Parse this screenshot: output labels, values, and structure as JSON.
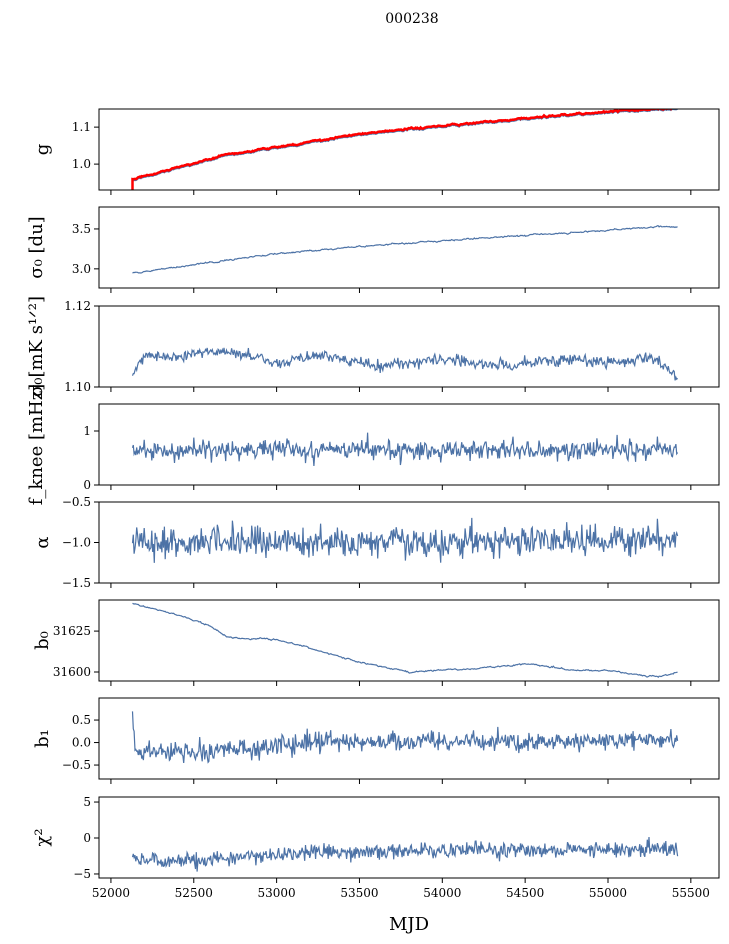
{
  "chart_data": {
    "type": "line",
    "title": "000238",
    "xlabel": "MJD",
    "xlim": [
      51928,
      55670
    ],
    "xticks": [
      52000,
      52500,
      53000,
      53500,
      54000,
      54500,
      55000,
      55500
    ],
    "x_range": [
      52130,
      55420
    ],
    "line_color": "#4c72a6",
    "overlay_color": "#ff0000",
    "panels": [
      {
        "ylabel": "g",
        "ylim": [
          0.93,
          1.149
        ],
        "yticks": [
          1.0,
          1.1
        ],
        "ytick_labels": [
          "1.0",
          "1.1"
        ],
        "noise": 0.001,
        "trend": [
          [
            52130,
            0.955
          ],
          [
            52300,
            0.975
          ],
          [
            52500,
            0.998
          ],
          [
            52700,
            1.022
          ],
          [
            53000,
            1.042
          ],
          [
            53500,
            1.078
          ],
          [
            54000,
            1.1
          ],
          [
            54500,
            1.12
          ],
          [
            55000,
            1.138
          ],
          [
            55420,
            1.148
          ]
        ],
        "overlay": {
          "label": "red overlay",
          "offset": 0.004,
          "start_spike": 0.93
        }
      },
      {
        "ylabel": "σ₀ [du]",
        "ylim": [
          2.76,
          3.775
        ],
        "yticks": [
          3.0,
          3.5
        ],
        "ytick_labels": [
          "3.0",
          "3.5"
        ],
        "noise": 0.004,
        "trend": [
          [
            52130,
            2.95
          ],
          [
            52500,
            3.05
          ],
          [
            53000,
            3.19
          ],
          [
            53500,
            3.28
          ],
          [
            54000,
            3.35
          ],
          [
            54500,
            3.42
          ],
          [
            55000,
            3.48
          ],
          [
            55300,
            3.53
          ],
          [
            55420,
            3.52
          ]
        ]
      },
      {
        "ylabel": "σ₀[mK s¹ᐟ²]",
        "ylim": [
          1.1,
          1.12
        ],
        "yticks": [
          1.1,
          1.12
        ],
        "ytick_labels": [
          "1.10",
          "1.12"
        ],
        "noise": 0.0007,
        "trend": [
          [
            52130,
            1.103
          ],
          [
            52200,
            1.108
          ],
          [
            52400,
            1.1075
          ],
          [
            52600,
            1.109
          ],
          [
            52800,
            1.108
          ],
          [
            53000,
            1.106
          ],
          [
            53300,
            1.108
          ],
          [
            53600,
            1.105
          ],
          [
            54000,
            1.107
          ],
          [
            54400,
            1.105
          ],
          [
            54700,
            1.107
          ],
          [
            55000,
            1.106
          ],
          [
            55300,
            1.107
          ],
          [
            55420,
            1.102
          ]
        ]
      },
      {
        "ylabel": "f_knee [mHz]",
        "ylim": [
          0,
          1.5
        ],
        "yticks": [
          0,
          1
        ],
        "ytick_labels": [
          "0",
          "1"
        ],
        "noise": 0.09,
        "trend": [
          [
            52130,
            0.65
          ],
          [
            55420,
            0.65
          ]
        ]
      },
      {
        "ylabel": "α",
        "ylim": [
          -1.5,
          -0.5
        ],
        "yticks": [
          -1.5,
          -1.0,
          -0.5
        ],
        "ytick_labels": [
          "−1.5",
          "−1.0",
          "−0.5"
        ],
        "noise": 0.09,
        "trend": [
          [
            52130,
            -1.0
          ],
          [
            55420,
            -0.98
          ]
        ]
      },
      {
        "ylabel": "b₀",
        "ylim": [
          31594.5,
          31644
        ],
        "yticks": [
          31600,
          31625
        ],
        "ytick_labels": [
          "31600",
          "31625"
        ],
        "noise": 0.2,
        "trend": [
          [
            52130,
            31642
          ],
          [
            52400,
            31635
          ],
          [
            52600,
            31628
          ],
          [
            52700,
            31621
          ],
          [
            53000,
            31620
          ],
          [
            53300,
            31612
          ],
          [
            53500,
            31606
          ],
          [
            53800,
            31600
          ],
          [
            54200,
            31602
          ],
          [
            54500,
            31605
          ],
          [
            54800,
            31601
          ],
          [
            55000,
            31601
          ],
          [
            55200,
            31598
          ],
          [
            55300,
            31597
          ],
          [
            55420,
            31600
          ]
        ]
      },
      {
        "ylabel": "b₁",
        "ylim": [
          -0.81,
          0.99
        ],
        "yticks": [
          -0.5,
          0.0,
          0.5
        ],
        "ytick_labels": [
          "−0.5",
          "0.0",
          "0.5"
        ],
        "noise": 0.11,
        "trend": [
          [
            52130,
            0.5
          ],
          [
            52150,
            -0.2
          ],
          [
            52600,
            -0.2
          ],
          [
            53200,
            0.0
          ],
          [
            54000,
            0.05
          ],
          [
            54500,
            0.0
          ],
          [
            55000,
            0.05
          ],
          [
            55420,
            0.05
          ]
        ]
      },
      {
        "ylabel": "χ²",
        "ylim": [
          -5.56,
          5.7
        ],
        "yticks": [
          -5,
          0,
          5
        ],
        "ytick_labels": [
          "−5",
          "0",
          "5"
        ],
        "noise": 0.55,
        "trend": [
          [
            52130,
            -3.0
          ],
          [
            52400,
            -3.3
          ],
          [
            52800,
            -2.5
          ],
          [
            53200,
            -2.0
          ],
          [
            54000,
            -1.8
          ],
          [
            55000,
            -1.6
          ],
          [
            55420,
            -1.5
          ]
        ]
      }
    ]
  }
}
